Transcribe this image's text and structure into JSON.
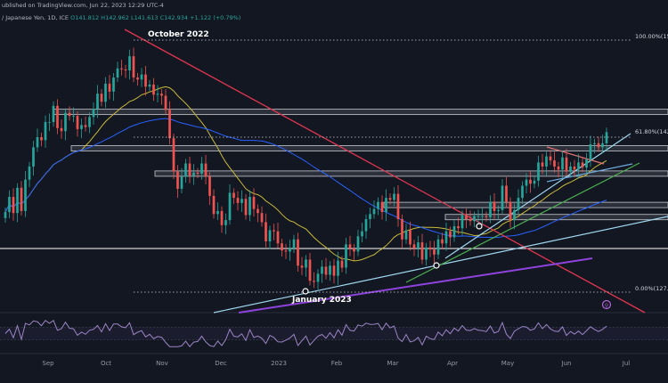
{
  "header": {
    "published": "ublished on TradingView.com, Jun 22, 2023 12:29 UTC-4",
    "symbol_line": "/ Japanese Yen, 1D, ICE",
    "ohlc": [
      {
        "k": "O",
        "v": "141.812",
        "c": "#26a69a"
      },
      {
        "k": "H",
        "v": "142.962",
        "c": "#26a69a"
      },
      {
        "k": "L",
        "v": "141.613",
        "c": "#26a69a"
      },
      {
        "k": "C",
        "v": "142.934",
        "c": "#26a69a"
      },
      {
        "k": "",
        "v": "+1.122 (+0.79%)",
        "c": "#26a69a"
      }
    ]
  },
  "annotations": {
    "october": "October 2022",
    "january": "January 2023",
    "fib_100": "100.00%(152.0",
    "fib_618": "61.80%(142.4",
    "fib_0": "0.00%(127.08"
  },
  "colors": {
    "up": "#26a69a",
    "down": "#ef5350",
    "ma_fast": "#c8b93a",
    "ma_slow": "#2962ff",
    "downtrend": "#e0364f",
    "rsi": "#9c86c6",
    "purple_trend": "#8e44dc",
    "green_trend": "#4caf50",
    "light_trend": "#9fd7ee",
    "blue_trend": "#6fa8dc"
  },
  "chart_data": {
    "type": "candlestick",
    "x_ticks": [
      "Sep",
      "Oct",
      "Nov",
      "Dec",
      "2023",
      "Feb",
      "Mar",
      "Apr",
      "May",
      "Jun",
      "Jul"
    ],
    "y_range": [
      126.5,
      153
    ],
    "fibonacci": [
      {
        "level": "100.00%",
        "price": 152.0
      },
      {
        "level": "61.80%",
        "price": 142.4
      },
      {
        "level": "0.00%",
        "price": 127.08
      }
    ],
    "resistance_zones": [
      144.9,
      141.3,
      138.8,
      135.7,
      134.5
    ],
    "support_line": 131.4,
    "closes": [
      135.0,
      136.5,
      134.9,
      137.4,
      135.1,
      138.2,
      139.5,
      141.4,
      142.4,
      142.1,
      143.9,
      143.9,
      145.5,
      143.3,
      143.0,
      144.8,
      144.5,
      144.5,
      143.2,
      143.6,
      143.4,
      144.4,
      145.2,
      146.7,
      145.9,
      147.7,
      146.9,
      148.3,
      149.2,
      149.1,
      149.0,
      150.4,
      148.3,
      148.1,
      148.6,
      147.4,
      147.6,
      146.6,
      146.7,
      146.5,
      145.1,
      142.3,
      139.0,
      137.3,
      138.5,
      139.8,
      138.6,
      138.9,
      138.8,
      139.8,
      138.5,
      136.6,
      134.8,
      135.1,
      133.7,
      134.2,
      136.9,
      136.4,
      135.9,
      136.3,
      134.7,
      136.5,
      135.3,
      134.9,
      134.0,
      132.1,
      133.2,
      133.1,
      131.9,
      131.2,
      131.1,
      131.4,
      132.3,
      129.7,
      129.5,
      130.3,
      128.2,
      128.1,
      128.9,
      129.6,
      128.8,
      129.7,
      128.7,
      130.2,
      129.5,
      131.8,
      131.4,
      131.1,
      132.6,
      133.1,
      134.3,
      134.8,
      135.3,
      136.0,
      135.0,
      136.4,
      136.2,
      136.8,
      134.3,
      132.3,
      133.2,
      131.8,
      131.4,
      132.0,
      130.3,
      131.5,
      131.3,
      130.8,
      132.3,
      131.9,
      133.1,
      132.5,
      133.6,
      133.4,
      134.7,
      134.3,
      134.1,
      134.6,
      134.6,
      134.6,
      134.5,
      136.0,
      135.1,
      135.2,
      137.6,
      136.0,
      134.2,
      135.2,
      136.4,
      137.6,
      138.2,
      137.8,
      138.1,
      139.9,
      139.5,
      140.5,
      140.1,
      139.5,
      139.2,
      140.4,
      139.0,
      139.5,
      139.2,
      139.9,
      139.4,
      140.2,
      141.7,
      141.8,
      141.4,
      141.8,
      142.9
    ],
    "rsi_range": [
      0,
      100
    ]
  }
}
